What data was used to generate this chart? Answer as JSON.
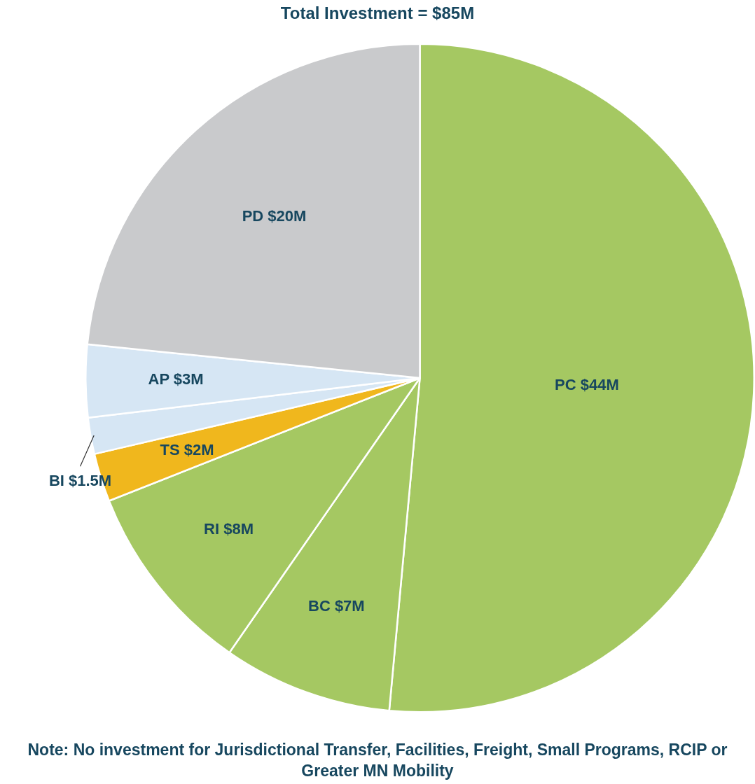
{
  "chart_data": {
    "type": "pie",
    "title": "Total Investment = $85M",
    "categories": [
      "PC",
      "BC",
      "RI",
      "TS",
      "BI",
      "AP",
      "PD"
    ],
    "values": [
      44,
      7,
      8,
      2,
      1.5,
      3,
      20
    ],
    "value_labels": [
      "$44M",
      "$7M",
      "$8M",
      "$2M",
      "$1.5M",
      "$3M",
      "$20M"
    ],
    "colors": [
      "#a5c862",
      "#a5c862",
      "#a5c862",
      "#f0b71d",
      "#d6e6f4",
      "#d6e6f4",
      "#c9cacc"
    ],
    "legend": false,
    "annotations": [
      "Note: No investment for Jurisdictional Transfer, Facilities, Freight, Small Programs, RCIP or Greater MN Mobility"
    ]
  }
}
